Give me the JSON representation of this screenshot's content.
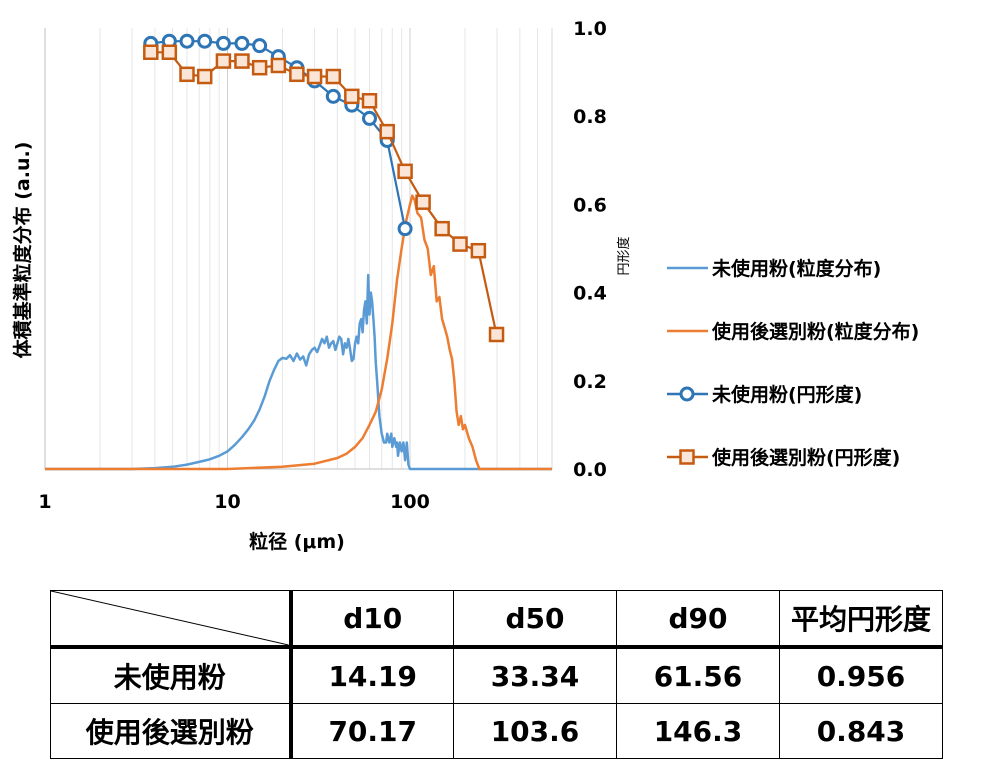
{
  "chart_data": {
    "type": "line",
    "xlabel": "粒径 (μm)",
    "ylabel": "体積基準粒度分布 (a.u.)",
    "y2label": "円形度",
    "x_scale": "log",
    "xlim": [
      1,
      600
    ],
    "x_ticks": [
      "1",
      "10",
      "100"
    ],
    "ylim": [
      0,
      1
    ],
    "y2lim": [
      0.0,
      1.0
    ],
    "y2_ticks": [
      "0.0",
      "0.2",
      "0.4",
      "0.6",
      "0.8",
      "1.0"
    ],
    "grid": "vertical",
    "legend_position": "right",
    "series": [
      {
        "name": "未使用粉(粒度分布)",
        "style": "line",
        "color": "#5b9bd5",
        "axis": "left",
        "x": [
          1,
          3,
          4,
          5,
          6,
          7,
          8,
          9,
          10,
          11,
          12,
          13,
          14,
          15,
          16,
          17,
          18,
          19,
          20,
          21,
          22,
          23,
          24,
          25,
          26,
          27,
          28,
          29,
          30,
          31,
          32,
          33,
          34,
          35,
          36,
          37,
          38,
          39,
          40,
          41,
          42,
          43,
          44,
          45,
          46,
          47,
          48,
          49,
          50,
          51,
          52,
          53,
          54,
          55,
          56,
          57,
          58,
          59,
          60,
          61,
          62,
          63,
          64,
          65,
          66,
          68,
          70,
          72,
          74,
          75,
          77,
          79,
          80,
          82,
          84,
          85,
          86,
          88,
          90,
          92,
          94,
          96,
          98,
          100,
          600
        ],
        "values": [
          0,
          0,
          0.002,
          0.005,
          0.01,
          0.016,
          0.022,
          0.03,
          0.04,
          0.055,
          0.072,
          0.09,
          0.11,
          0.135,
          0.165,
          0.2,
          0.225,
          0.245,
          0.252,
          0.25,
          0.258,
          0.245,
          0.262,
          0.248,
          0.255,
          0.235,
          0.26,
          0.27,
          0.275,
          0.265,
          0.28,
          0.295,
          0.285,
          0.3,
          0.275,
          0.285,
          0.29,
          0.27,
          0.285,
          0.3,
          0.295,
          0.26,
          0.285,
          0.275,
          0.295,
          0.27,
          0.245,
          0.25,
          0.285,
          0.3,
          0.285,
          0.33,
          0.34,
          0.31,
          0.36,
          0.38,
          0.33,
          0.44,
          0.35,
          0.4,
          0.38,
          0.34,
          0.3,
          0.24,
          0.2,
          0.12,
          0.08,
          0.06,
          0.06,
          0.08,
          0.06,
          0.08,
          0.05,
          0.07,
          0.05,
          0.06,
          0.03,
          0.06,
          0.04,
          0.06,
          0.02,
          0.06,
          0.01,
          0,
          0
        ]
      },
      {
        "name": "使用後選別粉(粒度分布)",
        "style": "line",
        "color": "#ed7d31",
        "axis": "left",
        "x": [
          1,
          10,
          20,
          30,
          40,
          45,
          50,
          55,
          60,
          65,
          70,
          75,
          80,
          85,
          90,
          95,
          100,
          103,
          106,
          110,
          115,
          120,
          125,
          130,
          135,
          140,
          145,
          150,
          155,
          160,
          165,
          170,
          175,
          180,
          185,
          190,
          195,
          200,
          210,
          220,
          230,
          240,
          600
        ],
        "values": [
          0,
          0,
          0.005,
          0.012,
          0.025,
          0.035,
          0.05,
          0.07,
          0.1,
          0.13,
          0.18,
          0.25,
          0.33,
          0.43,
          0.5,
          0.56,
          0.6,
          0.62,
          0.61,
          0.58,
          0.57,
          0.52,
          0.5,
          0.44,
          0.46,
          0.38,
          0.39,
          0.34,
          0.32,
          0.3,
          0.27,
          0.25,
          0.2,
          0.13,
          0.1,
          0.12,
          0.09,
          0.1,
          0.07,
          0.05,
          0.02,
          0,
          0
        ]
      },
      {
        "name": "未使用粉(円形度)",
        "style": "line-marker",
        "marker": "circle",
        "color": "#2e75b6",
        "axis": "right",
        "x": [
          3.8,
          4.8,
          6,
          7.5,
          9.5,
          12,
          15,
          19,
          24,
          30,
          38,
          48,
          60,
          75,
          94
        ],
        "values": [
          0.965,
          0.97,
          0.97,
          0.97,
          0.965,
          0.965,
          0.96,
          0.935,
          0.91,
          0.88,
          0.845,
          0.825,
          0.795,
          0.745,
          0.545
        ]
      },
      {
        "name": "使用後選別粉(円形度)",
        "style": "line-marker",
        "marker": "square",
        "color": "#c55a11",
        "axis": "right",
        "x": [
          3.8,
          4.8,
          6,
          7.5,
          9.5,
          12,
          15,
          19,
          24,
          30,
          38,
          48,
          60,
          75,
          94,
          118,
          150,
          188,
          237,
          298
        ],
        "values": [
          0.945,
          0.945,
          0.895,
          0.89,
          0.925,
          0.925,
          0.91,
          0.915,
          0.895,
          0.89,
          0.89,
          0.845,
          0.835,
          0.765,
          0.675,
          0.605,
          0.545,
          0.51,
          0.495,
          0.305
        ]
      }
    ]
  },
  "table": {
    "headers": [
      "d10",
      "d50",
      "d90",
      "平均円形度"
    ],
    "rows": [
      {
        "label": "未使用粉",
        "values": [
          "14.19",
          "33.34",
          "61.56",
          "0.956"
        ]
      },
      {
        "label": "使用後選別粉",
        "values": [
          "70.17",
          "103.6",
          "146.3",
          "0.843"
        ]
      }
    ]
  }
}
